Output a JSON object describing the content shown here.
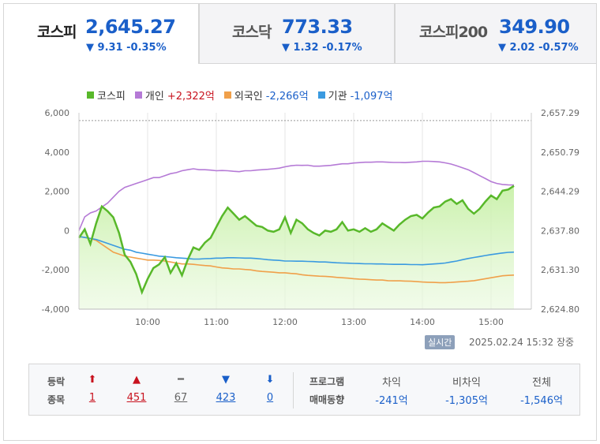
{
  "tabs": [
    {
      "name": "코스피",
      "value": "2,645.27",
      "change": "▼ 9.31 -0.35%",
      "active": true
    },
    {
      "name": "코스닥",
      "value": "773.33",
      "change": "▼ 1.32 -0.17%",
      "active": false
    },
    {
      "name": "코스피200",
      "value": "349.90",
      "change": "▼ 2.02 -0.57%",
      "active": false
    }
  ],
  "legend": {
    "kospi": "코스피",
    "individual": "개인",
    "individual_value": "+2,322억",
    "foreign": "외국인",
    "foreign_value": "-2,266억",
    "institution": "기관",
    "institution_value": "-1,097억"
  },
  "timestamp": {
    "badge": "실시간",
    "datetime": "2025.02.24 15:32",
    "status": "장중"
  },
  "breadth": {
    "label_line1": "등락",
    "label_line2": "종목",
    "items": [
      {
        "arrow": "⬆",
        "count": "1",
        "color": "#c8121e"
      },
      {
        "arrow": "▲",
        "count": "451",
        "color": "#c8121e"
      },
      {
        "arrow": "━",
        "count": "67",
        "color": "#666666"
      },
      {
        "arrow": "▼",
        "count": "423",
        "color": "#1a5fc9"
      },
      {
        "arrow": "⬇",
        "count": "0",
        "color": "#1a5fc9"
      }
    ]
  },
  "program": {
    "label_line1": "프로그램",
    "label_line2": "매매동향",
    "cols": [
      {
        "header": "차익",
        "value": "-241억"
      },
      {
        "header": "비차익",
        "value": "-1,305억"
      },
      {
        "header": "전체",
        "value": "-1,546억"
      }
    ]
  },
  "colors": {
    "kospi": "#58b82a",
    "individual": "#b57ad6",
    "foreign": "#f0a04a",
    "institution": "#3a9ae0",
    "up": "#c8121e",
    "down": "#1a5fc9"
  },
  "chart_data": {
    "type": "line",
    "x": [
      "09:00",
      "09:05",
      "09:10",
      "09:15",
      "09:20",
      "09:25",
      "09:30",
      "09:35",
      "09:40",
      "09:45",
      "09:50",
      "09:55",
      "10:00",
      "10:05",
      "10:10",
      "10:15",
      "10:20",
      "10:25",
      "10:30",
      "10:35",
      "10:40",
      "10:45",
      "10:50",
      "10:55",
      "11:00",
      "11:05",
      "11:10",
      "11:15",
      "11:20",
      "11:25",
      "11:30",
      "11:35",
      "11:40",
      "11:45",
      "11:50",
      "11:55",
      "12:00",
      "12:05",
      "12:10",
      "12:15",
      "12:20",
      "12:25",
      "12:30",
      "12:35",
      "12:40",
      "12:45",
      "12:50",
      "12:55",
      "13:00",
      "13:05",
      "13:10",
      "13:15",
      "13:20",
      "13:25",
      "13:30",
      "13:35",
      "13:40",
      "13:45",
      "13:50",
      "13:55",
      "14:00",
      "14:05",
      "14:10",
      "14:15",
      "14:20",
      "14:25",
      "14:30",
      "14:35",
      "14:40",
      "14:45",
      "14:50",
      "14:55",
      "15:00",
      "15:05",
      "15:10",
      "15:15",
      "15:20"
    ],
    "x_ticks": [
      "10:00",
      "11:00",
      "12:00",
      "13:00",
      "14:00",
      "15:00"
    ],
    "y_left": {
      "ticks": [
        "6,000",
        "4,000",
        "2,000",
        "0",
        "-2,000",
        "-4,000"
      ],
      "range": [
        -4000,
        6000
      ]
    },
    "y_right": {
      "ticks": [
        "2,657.29",
        "2,650.79",
        "2,644.29",
        "2,637.80",
        "2,631.30",
        "2,624.80"
      ],
      "range": [
        2624.8,
        2657.29
      ]
    },
    "reference_line": 2656.0,
    "series": [
      {
        "name": "코스피",
        "axis": "right",
        "values": [
          2636.6,
          2638.0,
          2635.6,
          2639.0,
          2641.8,
          2641.0,
          2640.0,
          2637.4,
          2633.8,
          2632.6,
          2630.6,
          2627.6,
          2629.8,
          2631.6,
          2632.2,
          2633.4,
          2630.8,
          2632.4,
          2630.4,
          2633.0,
          2635.0,
          2634.6,
          2635.8,
          2636.6,
          2638.4,
          2640.2,
          2641.6,
          2640.6,
          2639.6,
          2640.2,
          2639.4,
          2638.6,
          2638.4,
          2637.8,
          2637.6,
          2638.0,
          2640.0,
          2637.4,
          2639.6,
          2639.0,
          2638.0,
          2637.4,
          2637.0,
          2637.8,
          2637.6,
          2638.0,
          2639.2,
          2637.8,
          2638.0,
          2637.6,
          2638.2,
          2637.6,
          2638.0,
          2639.0,
          2638.4,
          2637.8,
          2638.8,
          2639.6,
          2640.2,
          2640.4,
          2639.8,
          2640.8,
          2641.6,
          2641.8,
          2642.6,
          2643.0,
          2642.2,
          2642.8,
          2641.4,
          2640.6,
          2641.4,
          2642.6,
          2643.6,
          2643.0,
          2644.4,
          2644.6,
          2645.2
        ]
      },
      {
        "name": "개인",
        "axis": "left",
        "values": [
          0,
          700,
          900,
          1000,
          1200,
          1400,
          1700,
          2000,
          2200,
          2300,
          2400,
          2500,
          2600,
          2700,
          2700,
          2800,
          2900,
          2950,
          3050,
          3100,
          3150,
          3100,
          3100,
          3080,
          3050,
          3060,
          3050,
          3020,
          3000,
          3050,
          3050,
          3080,
          3100,
          3120,
          3150,
          3180,
          3250,
          3300,
          3330,
          3320,
          3330,
          3280,
          3280,
          3300,
          3320,
          3360,
          3400,
          3400,
          3440,
          3460,
          3480,
          3480,
          3500,
          3500,
          3480,
          3470,
          3470,
          3460,
          3480,
          3500,
          3530,
          3530,
          3520,
          3500,
          3450,
          3390,
          3300,
          3200,
          3100,
          2950,
          2800,
          2650,
          2500,
          2400,
          2350,
          2330,
          2322
        ]
      },
      {
        "name": "외국인",
        "axis": "left",
        "values": [
          -300,
          -350,
          -400,
          -500,
          -700,
          -900,
          -1100,
          -1200,
          -1300,
          -1350,
          -1400,
          -1450,
          -1500,
          -1500,
          -1520,
          -1550,
          -1600,
          -1650,
          -1700,
          -1700,
          -1720,
          -1750,
          -1780,
          -1800,
          -1850,
          -1900,
          -1920,
          -1950,
          -1950,
          -1980,
          -2000,
          -2050,
          -2080,
          -2100,
          -2120,
          -2150,
          -2150,
          -2180,
          -2200,
          -2250,
          -2280,
          -2300,
          -2320,
          -2330,
          -2350,
          -2380,
          -2400,
          -2420,
          -2450,
          -2470,
          -2480,
          -2500,
          -2520,
          -2520,
          -2550,
          -2560,
          -2560,
          -2570,
          -2580,
          -2600,
          -2620,
          -2630,
          -2640,
          -2650,
          -2650,
          -2640,
          -2620,
          -2600,
          -2580,
          -2550,
          -2500,
          -2450,
          -2400,
          -2350,
          -2300,
          -2280,
          -2266
        ]
      },
      {
        "name": "기관",
        "axis": "left",
        "values": [
          -300,
          -350,
          -400,
          -450,
          -550,
          -650,
          -750,
          -850,
          -950,
          -1000,
          -1100,
          -1150,
          -1200,
          -1250,
          -1300,
          -1320,
          -1350,
          -1380,
          -1400,
          -1420,
          -1450,
          -1450,
          -1430,
          -1420,
          -1400,
          -1400,
          -1380,
          -1380,
          -1390,
          -1400,
          -1400,
          -1420,
          -1450,
          -1480,
          -1500,
          -1520,
          -1550,
          -1550,
          -1560,
          -1560,
          -1570,
          -1580,
          -1600,
          -1600,
          -1620,
          -1640,
          -1650,
          -1660,
          -1670,
          -1680,
          -1690,
          -1690,
          -1700,
          -1700,
          -1710,
          -1720,
          -1720,
          -1720,
          -1730,
          -1730,
          -1740,
          -1720,
          -1700,
          -1680,
          -1650,
          -1600,
          -1550,
          -1480,
          -1420,
          -1370,
          -1320,
          -1270,
          -1220,
          -1180,
          -1140,
          -1110,
          -1097
        ]
      }
    ]
  }
}
